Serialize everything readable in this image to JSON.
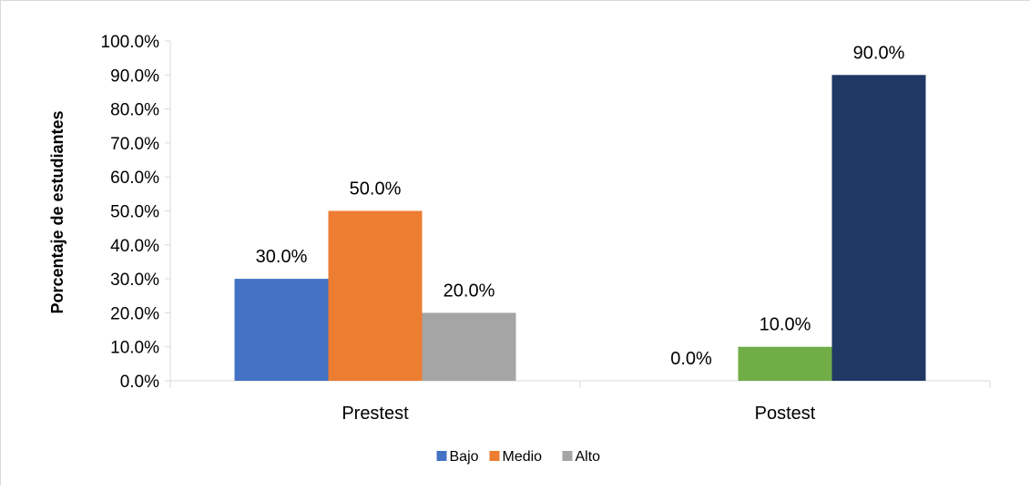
{
  "chart_data": {
    "type": "bar",
    "title": "",
    "xlabel": "",
    "ylabel": "Porcentaje de estudiantes",
    "categories": [
      "Prestest",
      "Postest"
    ],
    "series": [
      {
        "name": "Bajo",
        "color": "#4472C4",
        "values": [
          30.0,
          0.0
        ],
        "labels": [
          "30.0%",
          "0.0%"
        ],
        "labels_visible": [
          true,
          true
        ]
      },
      {
        "name": "Medio",
        "color": "#ED7D31",
        "values": [
          50.0,
          10.0
        ],
        "labels": [
          "50.0%",
          "10.0%"
        ],
        "labels_visible": [
          true,
          true
        ]
      },
      {
        "name": "Alto",
        "color": "#A5A5A5",
        "values": [
          20.0,
          90.0
        ],
        "labels": [
          "20.0%",
          "90.0%"
        ],
        "labels_visible": [
          true,
          true
        ]
      }
    ],
    "postest_colors": [
      "#4472C4",
      "#70AD47",
      "#203864"
    ],
    "ylim": [
      0,
      100
    ],
    "yticks": [
      "0.0%",
      "10.0%",
      "20.0%",
      "30.0%",
      "40.0%",
      "50.0%",
      "60.0%",
      "70.0%",
      "80.0%",
      "90.0%",
      "100.0%"
    ],
    "grid": false,
    "legend_position": "bottom"
  }
}
